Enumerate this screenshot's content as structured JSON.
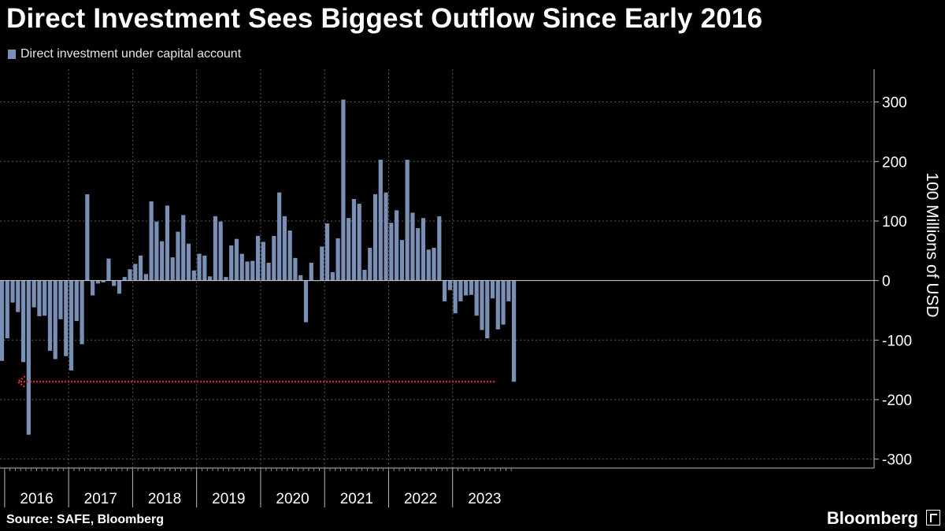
{
  "title": "Direct Investment Sees Biggest Outflow Since Early 2016",
  "source": "Source: SAFE, Bloomberg",
  "brand": "Bloomberg",
  "colors": {
    "background": "#000000",
    "bar": "#7a8fb5",
    "annotation": "#e0303c",
    "grid": "#5a5a5a",
    "text": "#ffffff"
  },
  "chart_data": {
    "type": "bar",
    "ylabel": "100 Millions of USD",
    "ylim": [
      -315,
      355
    ],
    "yticks": [
      300,
      200,
      100,
      0,
      -100,
      -200,
      -300
    ],
    "ytick_labels": [
      "300",
      "200",
      "100",
      "0",
      "-100",
      "-200",
      "-300"
    ],
    "grid": true,
    "legend_position": "top-left",
    "year_labels": [
      "2016",
      "2017",
      "2018",
      "2019",
      "2020",
      "2021",
      "2022",
      "2023"
    ],
    "series": [
      {
        "name": "Direct investment under capital account",
        "start": "2015-12",
        "frequency": "monthly",
        "values": [
          -135,
          -97,
          -37,
          -53,
          -137,
          -259,
          -45,
          -60,
          -59,
          -118,
          -132,
          -65,
          -127,
          -151,
          -68,
          -107,
          145,
          -25,
          -5,
          -3,
          37,
          -9,
          -22,
          6,
          19,
          28,
          42,
          11,
          133,
          99,
          66,
          126,
          39,
          82,
          110,
          62,
          17,
          45,
          42,
          7,
          108,
          99,
          6,
          59,
          70,
          45,
          32,
          33,
          75,
          65,
          30,
          75,
          148,
          108,
          84,
          38,
          9,
          -70,
          30,
          0,
          57,
          96,
          14,
          71,
          304,
          105,
          137,
          129,
          18,
          55,
          145,
          203,
          148,
          97,
          118,
          68,
          203,
          114,
          88,
          105,
          52,
          55,
          108,
          -35,
          -16,
          -55,
          -35,
          -25,
          -24,
          -59,
          -83,
          -97,
          -30,
          -82,
          -74,
          -35,
          -170
        ]
      }
    ],
    "annotations": [
      {
        "type": "dotted-arrow",
        "value": -170,
        "from": "2023-08",
        "to": "2016-03"
      }
    ]
  }
}
